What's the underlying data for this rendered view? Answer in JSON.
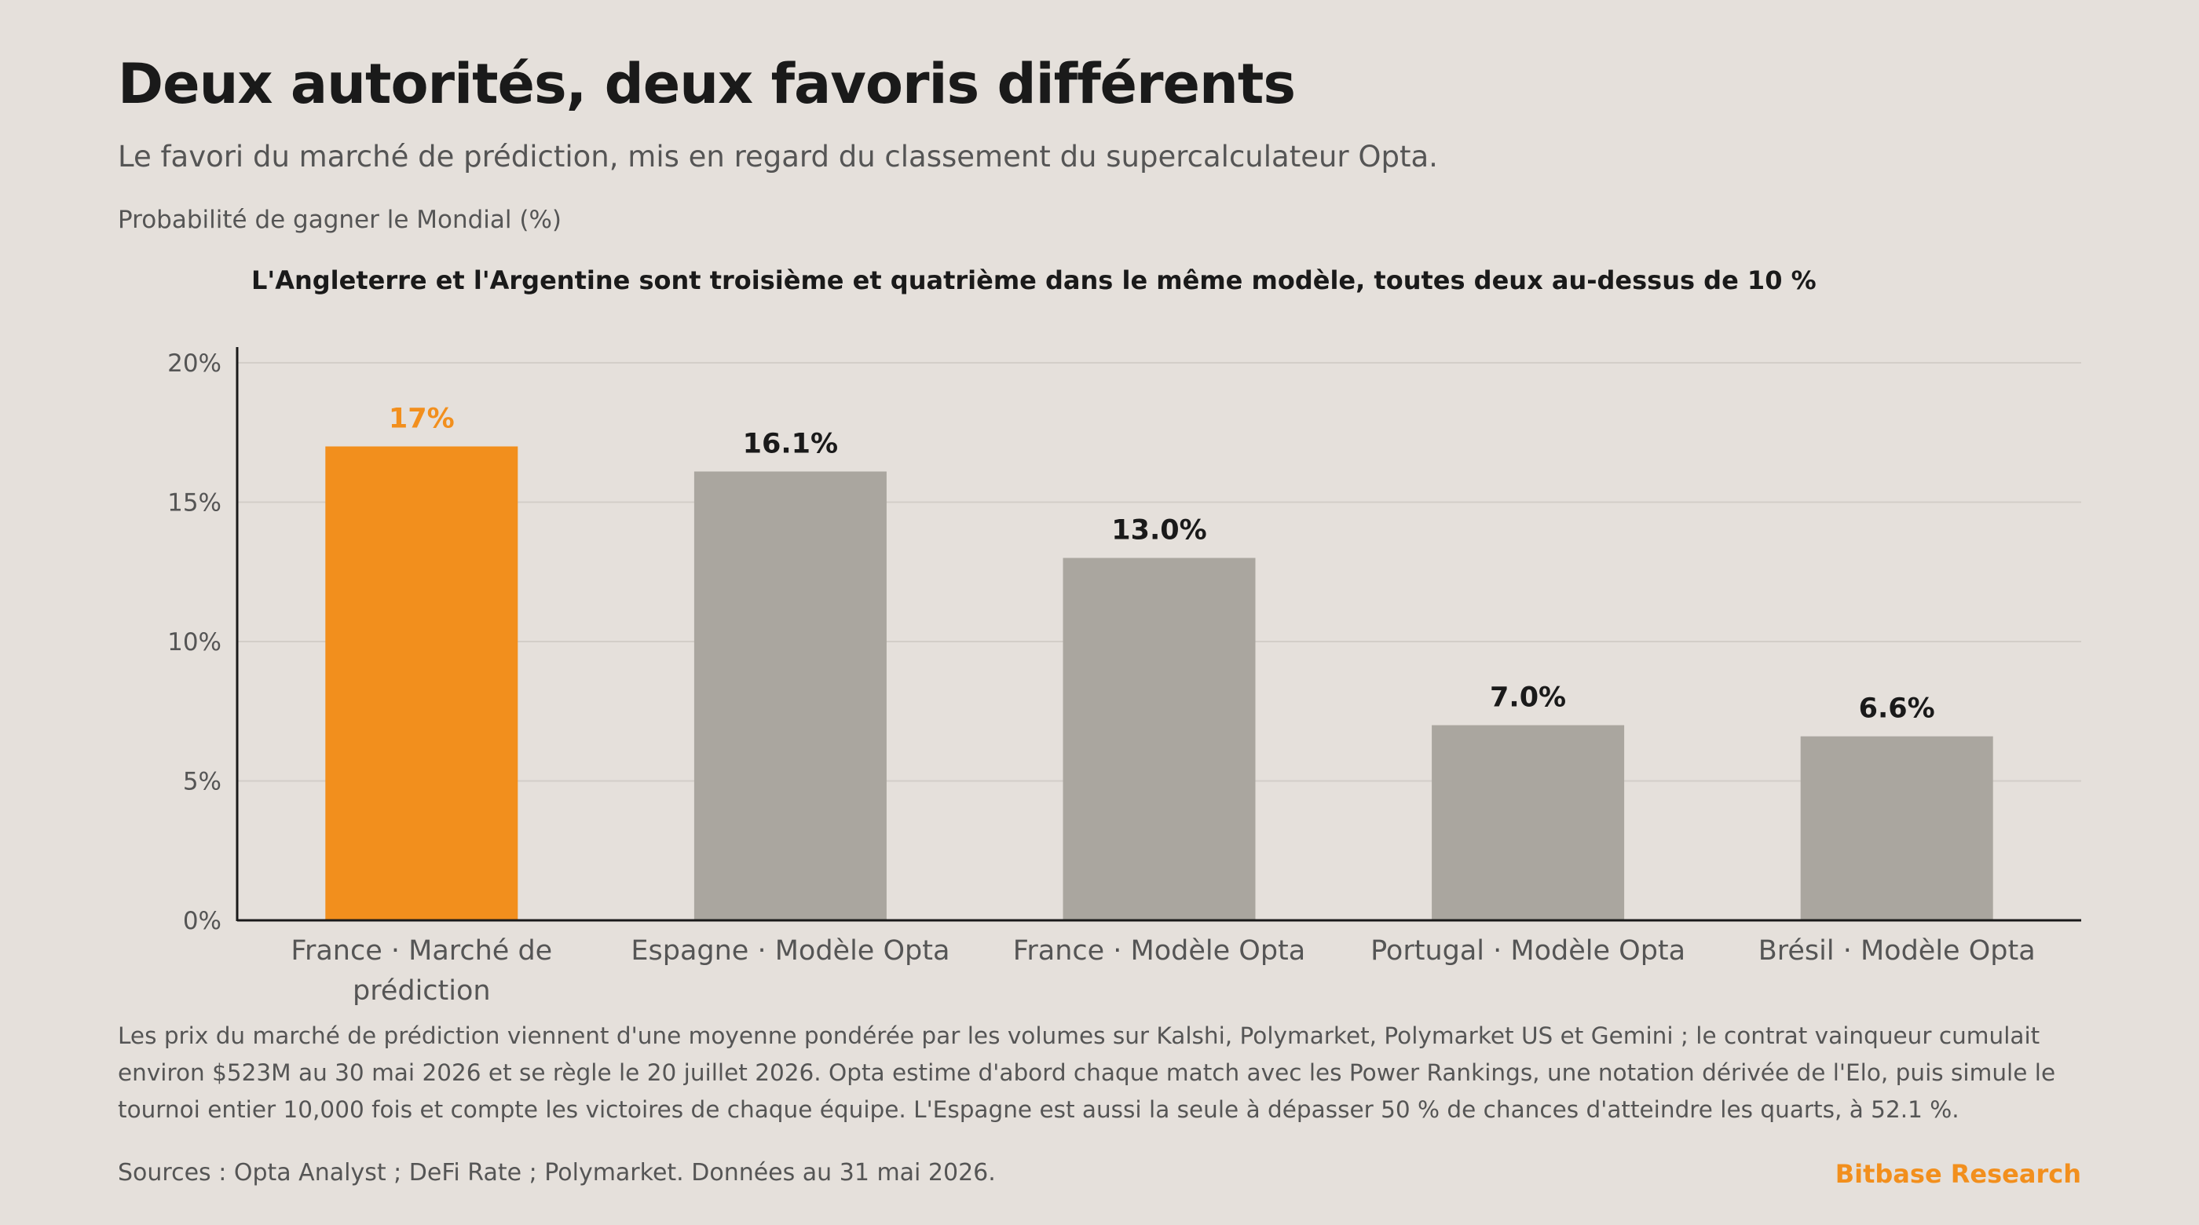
{
  "header": {
    "title": "Deux autorités, deux favoris différents",
    "subtitle": "Le favori du marché de prédiction, mis en regard du classement du supercalculateur Opta."
  },
  "footer": {
    "note": "Les prix du marché de prédiction viennent d'une moyenne pondérée par les volumes sur Kalshi, Polymarket, Polymarket US et Gemini ; le contrat vainqueur cumulait environ $523M au 30 mai 2026 et se règle le 20 juillet 2026. Opta estime d'abord chaque match avec les Power Rankings, une notation dérivée de l'Elo, puis simule le tournoi entier 10,000 fois et compte les victoires de chaque équipe. L'Espagne est aussi la seule à dépasser 50 % de chances d'atteindre les quarts, à 52.1 %.",
    "sources": "Sources : Opta Analyst ; DeFi Rate ; Polymarket. Données au 31 mai 2026.",
    "brand": "Bitbase Research"
  },
  "colors": {
    "highlight": "#f28f1d",
    "bar": "#aaa69f",
    "grid": "#d3cec8",
    "axis": "#1a1a1a",
    "tick_label": "#555555",
    "value_label": "#1a1a1a"
  },
  "chart_data": {
    "type": "bar",
    "title": "",
    "ylabel": "Probabilité de gagner le Mondial (%)",
    "xlabel": "",
    "annotation": "L'Angleterre et l'Argentine sont troisième et quatrième dans le même modèle, toutes deux au-dessus de 10 %",
    "ylim": [
      0,
      20
    ],
    "yticks": [
      0,
      5,
      10,
      15,
      20
    ],
    "ytick_labels": [
      "0%",
      "5%",
      "10%",
      "15%",
      "20%"
    ],
    "grid": true,
    "legend": "none",
    "categories": [
      [
        "France · Marché de",
        "prédiction"
      ],
      [
        "Espagne · Modèle Opta"
      ],
      [
        "France · Modèle Opta"
      ],
      [
        "Portugal · Modèle Opta"
      ],
      [
        "Brésil · Modèle Opta"
      ]
    ],
    "values": [
      17,
      16.1,
      13.0,
      7.0,
      6.6
    ],
    "value_labels": [
      "17%",
      "16.1%",
      "13.0%",
      "7.0%",
      "6.6%"
    ],
    "highlight": [
      true,
      false,
      false,
      false,
      false
    ]
  }
}
